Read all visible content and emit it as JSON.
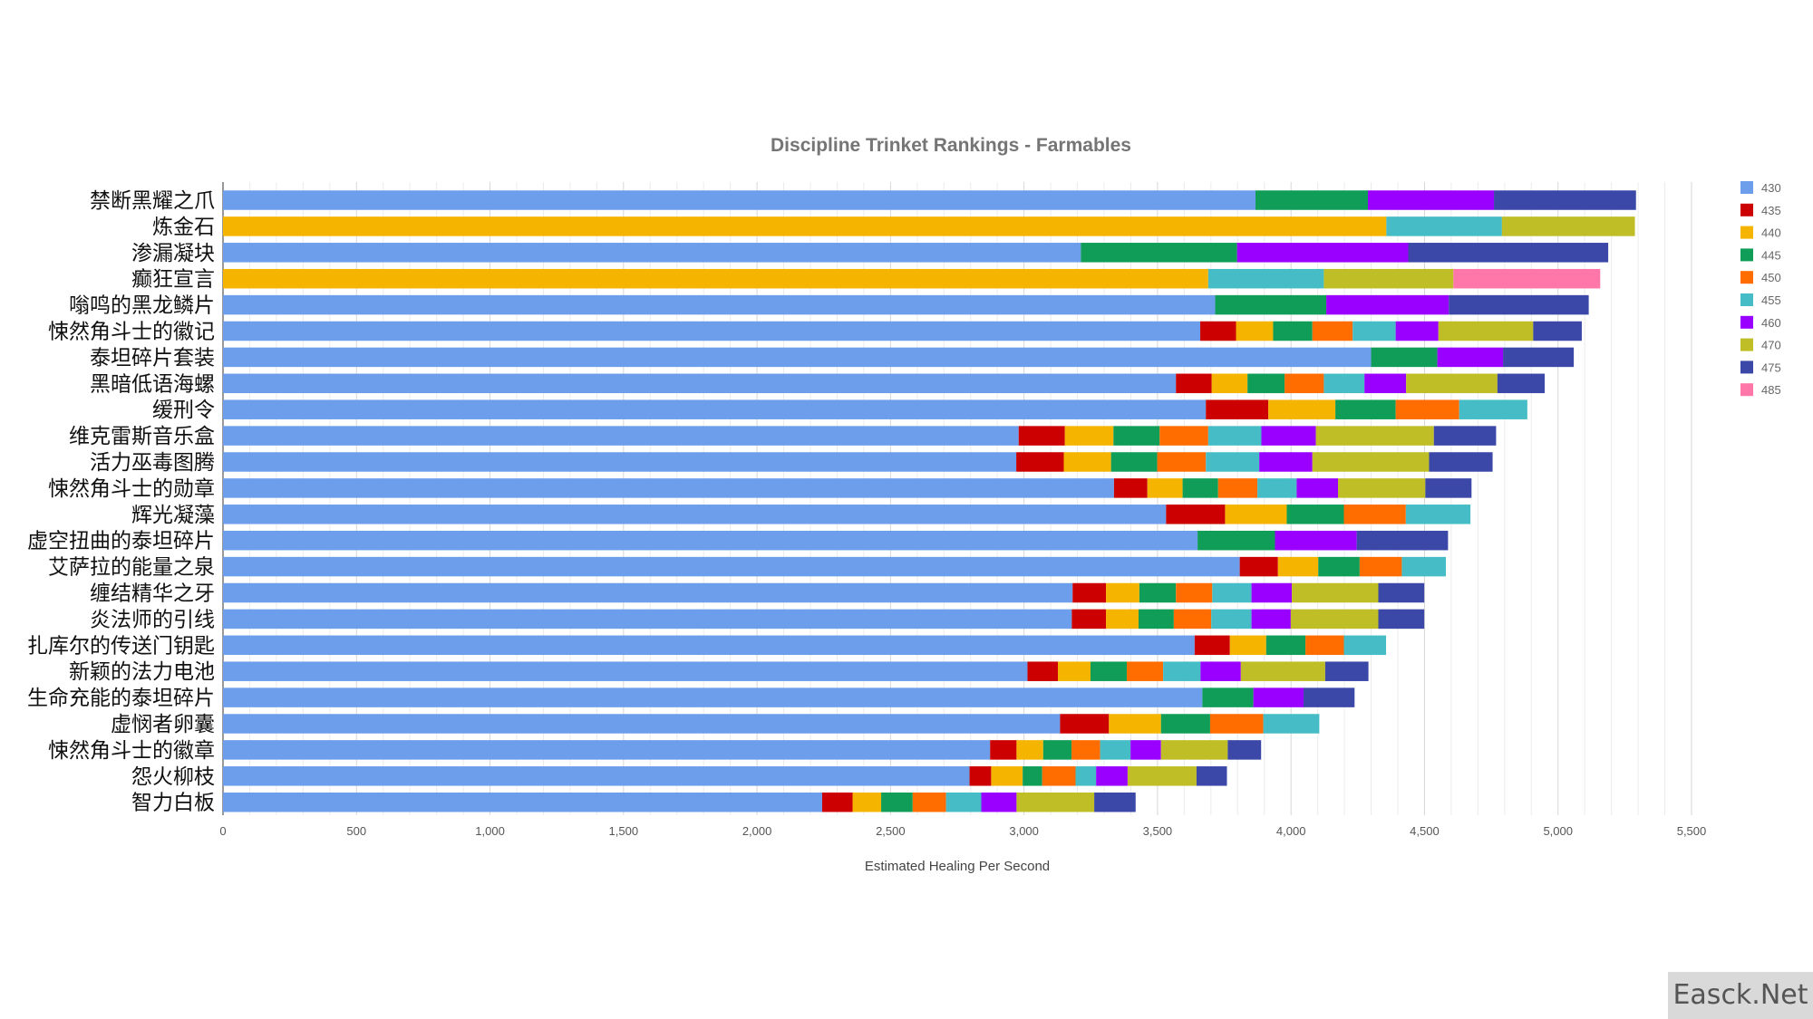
{
  "chart_data": {
    "type": "bar",
    "orientation": "horizontal",
    "stacked": true,
    "title": "Discipline Trinket Rankings - Farmables",
    "xlabel": "Estimated Healing Per Second",
    "ylabel": "",
    "xlim": [
      0,
      5500
    ],
    "xticks": [
      0,
      500,
      1000,
      1500,
      2000,
      2500,
      3000,
      3500,
      4000,
      4500,
      5000,
      5500
    ],
    "xtick_labels": [
      "0",
      "500",
      "1,000",
      "1,500",
      "2,000",
      "2,500",
      "3,000",
      "3,500",
      "4,000",
      "4,500",
      "5,000",
      "5,500"
    ],
    "grid": true,
    "legend_position": "right",
    "categories": [
      "禁断黑耀之爪",
      "炼金石",
      "渗漏凝块",
      "癫狂宣言",
      "嗡鸣的黑龙鳞片",
      "悚然角斗士的徽记",
      "泰坦碎片套装",
      "黑暗低语海螺",
      "缓刑令",
      "维克雷斯音乐盒",
      "活力巫毒图腾",
      "悚然角斗士的勋章",
      "辉光凝藻",
      "虚空扭曲的泰坦碎片",
      "艾萨拉的能量之泉",
      "缠结精华之牙",
      "炎法师的引线",
      "扎库尔的传送门钥匙",
      "新颖的法力电池",
      "生命充能的泰坦碎片",
      "虚悯者卵囊",
      "悚然角斗士的徽章",
      "怨火柳枝",
      "智力白板"
    ],
    "series": [
      {
        "name": "430",
        "color": "#6d9eeb",
        "values": [
          3867,
          null,
          3213,
          null,
          3716,
          3660,
          4300,
          3569,
          3681,
          2980,
          2971,
          3337,
          3532,
          3650,
          3808,
          3182,
          3179,
          3639,
          3013,
          3668,
          3135,
          2873,
          2796,
          2244
        ]
      },
      {
        "name": "435",
        "color": "#cc0000",
        "values": [
          null,
          null,
          null,
          null,
          null,
          134,
          null,
          134,
          234,
          173,
          178,
          125,
          221,
          null,
          143,
          125,
          128,
          132,
          114,
          null,
          183,
          99,
          81,
          114
        ]
      },
      {
        "name": "440",
        "color": "#f4b400",
        "values": [
          null,
          4357,
          null,
          3690,
          null,
          139,
          null,
          134,
          251,
          182,
          177,
          132,
          231,
          null,
          151,
          125,
          122,
          136,
          122,
          null,
          195,
          100,
          118,
          107
        ]
      },
      {
        "name": "445",
        "color": "#0f9d58",
        "values": [
          421,
          null,
          585,
          null,
          416,
          147,
          248,
          139,
          226,
          173,
          173,
          133,
          214,
          290,
          155,
          137,
          132,
          147,
          136,
          191,
          184,
          106,
          73,
          118
        ]
      },
      {
        "name": "450",
        "color": "#ff6d00",
        "values": [
          null,
          null,
          null,
          null,
          null,
          151,
          null,
          147,
          238,
          182,
          182,
          147,
          232,
          null,
          158,
          136,
          140,
          144,
          136,
          null,
          199,
          107,
          125,
          125
        ]
      },
      {
        "name": "455",
        "color": "#46bdc6",
        "values": [
          null,
          433,
          null,
          433,
          null,
          161,
          null,
          152,
          255,
          199,
          200,
          147,
          242,
          null,
          165,
          147,
          151,
          158,
          140,
          null,
          210,
          114,
          77,
          132
        ]
      },
      {
        "name": "460",
        "color": "#9900ff",
        "values": [
          472,
          null,
          641,
          null,
          459,
          160,
          246,
          156,
          null,
          204,
          199,
          155,
          null,
          306,
          null,
          151,
          147,
          null,
          151,
          188,
          null,
          114,
          118,
          132
        ]
      },
      {
        "name": "470",
        "color": "#bfbe26",
        "values": [
          null,
          498,
          null,
          485,
          null,
          355,
          null,
          342,
          null,
          442,
          437,
          327,
          null,
          null,
          null,
          324,
          328,
          null,
          316,
          null,
          null,
          250,
          258,
          291
        ]
      },
      {
        "name": "475",
        "color": "#3b48a8",
        "values": [
          532,
          null,
          749,
          null,
          524,
          182,
          265,
          177,
          null,
          233,
          238,
          173,
          null,
          342,
          null,
          172,
          172,
          null,
          162,
          191,
          null,
          125,
          114,
          155
        ]
      },
      {
        "name": "485",
        "color": "#ff77a9",
        "values": [
          null,
          null,
          null,
          550,
          null,
          null,
          null,
          null,
          null,
          null,
          null,
          null,
          null,
          null,
          null,
          null,
          null,
          null,
          null,
          null,
          null,
          null,
          null,
          null
        ]
      }
    ]
  },
  "watermark": "Easck.Net"
}
